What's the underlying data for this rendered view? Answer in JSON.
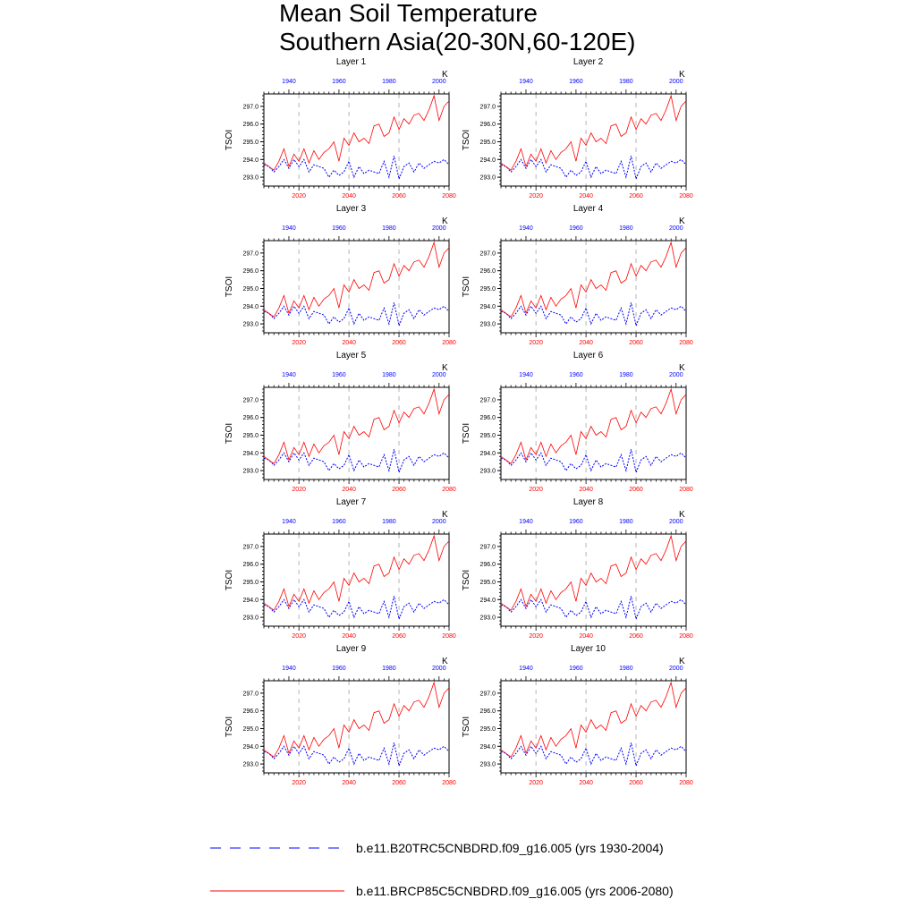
{
  "page": {
    "title_line1": "Mean Soil Temperature",
    "title_line2": "Southern Asia(20-30N,60-120E)"
  },
  "colors": {
    "historical": "#0000ff",
    "future": "#ff0000",
    "grid": "#b4b4b4",
    "axis": "#000000"
  },
  "chart_data": {
    "type": "line",
    "ylabel": "TSOI",
    "units": "K",
    "ylim": [
      292.5,
      297.7
    ],
    "yticks": [
      "293.0",
      "294.0",
      "295.0",
      "296.0",
      "297.0"
    ],
    "top_axis": {
      "xlim": [
        1930,
        2004
      ],
      "ticks": [
        "1940",
        "1960",
        "1980",
        "2000"
      ]
    },
    "bottom_axis": {
      "xlim": [
        2006,
        2080
      ],
      "ticks": [
        "2020",
        "2040",
        "2060",
        "2080"
      ]
    },
    "legend": [
      {
        "label": "b.e11.B20TRC5CNBDRD.f09_g16.005 (yrs 1930-2004)",
        "color": "#0000ff",
        "style": "dashed"
      },
      {
        "label": "b.e11.BRCP85C5CNBDRD.f09_g16.005 (yrs 2006-2080)",
        "color": "#ff0000",
        "style": "solid"
      }
    ],
    "panels": [
      {
        "title": "Layer 1"
      },
      {
        "title": "Layer 2"
      },
      {
        "title": "Layer 3"
      },
      {
        "title": "Layer 4"
      },
      {
        "title": "Layer 5"
      },
      {
        "title": "Layer 6"
      },
      {
        "title": "Layer 7"
      },
      {
        "title": "Layer 8"
      },
      {
        "title": "Layer 9"
      },
      {
        "title": "Layer 10"
      }
    ],
    "series_historical": {
      "x": [
        1930,
        1932,
        1934,
        1936,
        1938,
        1940,
        1942,
        1944,
        1946,
        1948,
        1950,
        1952,
        1954,
        1956,
        1958,
        1960,
        1962,
        1964,
        1966,
        1968,
        1970,
        1972,
        1974,
        1976,
        1978,
        1980,
        1982,
        1984,
        1986,
        1988,
        1990,
        1992,
        1994,
        1996,
        1998,
        2000,
        2002,
        2004
      ],
      "y": [
        293.7,
        293.6,
        293.3,
        293.6,
        294.0,
        293.5,
        294.0,
        293.6,
        294.0,
        293.3,
        293.7,
        293.6,
        293.5,
        293.0,
        293.4,
        293.1,
        293.3,
        293.9,
        293.0,
        293.6,
        293.2,
        293.4,
        293.3,
        293.2,
        293.9,
        293.0,
        294.2,
        292.9,
        293.6,
        293.8,
        293.3,
        293.8,
        293.5,
        293.7,
        293.9,
        293.8,
        294.0,
        293.7
      ]
    },
    "series_future": {
      "x": [
        2006,
        2008,
        2010,
        2012,
        2014,
        2016,
        2018,
        2020,
        2022,
        2024,
        2026,
        2028,
        2030,
        2032,
        2034,
        2036,
        2038,
        2040,
        2042,
        2044,
        2046,
        2048,
        2050,
        2052,
        2054,
        2056,
        2058,
        2060,
        2062,
        2064,
        2066,
        2068,
        2070,
        2072,
        2074,
        2076,
        2078,
        2080
      ],
      "y": [
        293.8,
        293.6,
        293.4,
        293.9,
        294.6,
        293.6,
        294.3,
        293.9,
        294.6,
        293.8,
        294.5,
        294.0,
        294.4,
        294.6,
        295.0,
        293.9,
        295.2,
        294.8,
        295.5,
        295.0,
        295.2,
        294.9,
        295.9,
        296.0,
        295.3,
        295.5,
        296.4,
        295.7,
        296.3,
        296.0,
        296.5,
        296.6,
        296.2,
        296.8,
        297.6,
        296.2,
        297.0,
        297.3
      ]
    }
  }
}
